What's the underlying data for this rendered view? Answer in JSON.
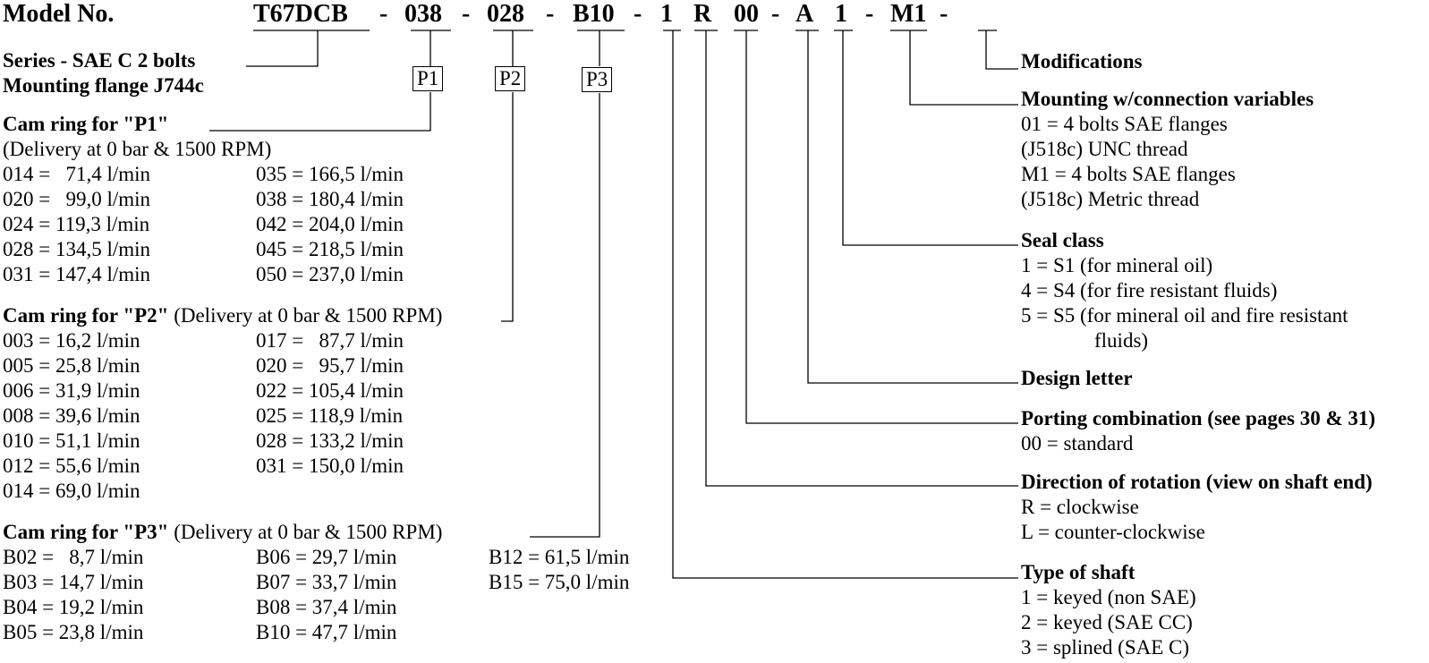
{
  "model": {
    "label": "Model No.",
    "parts": [
      "T67DCB",
      "-",
      "038",
      "-",
      "028",
      "-",
      "B10",
      "-",
      "1",
      "R",
      "00",
      "-",
      "A",
      "1",
      "-",
      "M1",
      "-"
    ]
  },
  "series": {
    "line1": "Series - SAE C 2 bolts",
    "line2": "Mounting flange J744c"
  },
  "boxes": [
    "P1",
    "P2",
    "P3"
  ],
  "p1": {
    "title": "Cam ring for \"P1\"",
    "subtitle": "(Delivery at 0 bar & 1500 RPM)",
    "col1": [
      "014 =   71,4 l/min",
      "020 =   99,0 l/min",
      "024 = 119,3 l/min",
      "028 = 134,5 l/min",
      "031 = 147,4 l/min"
    ],
    "col2": [
      "035 = 166,5 l/min",
      "038 = 180,4 l/min",
      "042 = 204,0 l/min",
      "045 = 218,5 l/min",
      "050 = 237,0 l/min"
    ]
  },
  "p2": {
    "title": "Cam ring for \"P2\"",
    "subtitle": "(Delivery at 0 bar & 1500 RPM)",
    "col1": [
      "003 = 16,2 l/min",
      "005 = 25,8 l/min",
      "006 = 31,9 l/min",
      "008 = 39,6 l/min",
      "010 = 51,1 l/min",
      "012 = 55,6 l/min",
      "014 = 69,0 l/min"
    ],
    "col2": [
      "017 =   87,7 l/min",
      "020 =   95,7 l/min",
      "022 = 105,4 l/min",
      "025 = 118,9 l/min",
      "028 = 133,2 l/min",
      "031 = 150,0 l/min"
    ]
  },
  "p3": {
    "title": "Cam ring for \"P3\"",
    "subtitle": "(Delivery at 0 bar & 1500 RPM)",
    "col1": [
      "B02 =   8,7 l/min",
      "B03 = 14,7 l/min",
      "B04 = 19,2 l/min",
      "B05 = 23,8 l/min"
    ],
    "col2": [
      "B06 = 29,7 l/min",
      "B07 = 33,7 l/min",
      "B08 = 37,4 l/min",
      "B10 = 47,7 l/min"
    ],
    "col3": [
      "B12 = 61,5 l/min",
      "B15 = 75,0 l/min"
    ]
  },
  "right": {
    "modifications": "Modifications",
    "mounting": {
      "title": "Mounting w/connection variables",
      "items": [
        "01 = 4 bolts SAE flanges",
        "(J518c) UNC thread",
        "M1 = 4 bolts SAE flanges",
        "(J518c) Metric thread"
      ]
    },
    "seal": {
      "title": "Seal class",
      "items": [
        "1 = S1 (for mineral oil)",
        "4 = S4 (for fire resistant fluids)",
        "5 = S5 (for mineral oil and fire resistant",
        "fluids)"
      ]
    },
    "design": {
      "title": "Design letter"
    },
    "porting": {
      "title": "Porting combination (see pages 30 & 31)",
      "items": [
        "00 = standard"
      ]
    },
    "rotation": {
      "title": "Direction of rotation (view on shaft end)",
      "items": [
        "R = clockwise",
        "L = counter-clockwise"
      ]
    },
    "shaft": {
      "title": "Type of shaft",
      "items": [
        "1 = keyed (non SAE)",
        "2 = keyed (SAE CC)",
        "3 = splined (SAE C)"
      ]
    }
  }
}
